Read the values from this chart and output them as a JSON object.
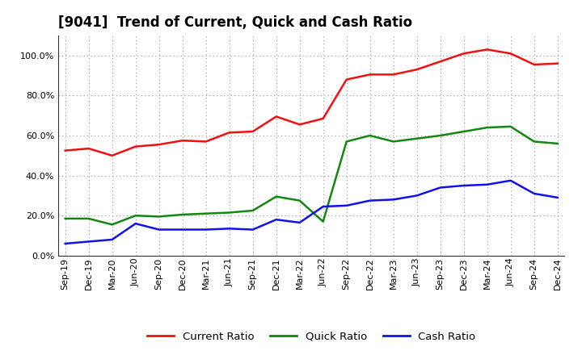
{
  "title": "[9041]  Trend of Current, Quick and Cash Ratio",
  "labels": [
    "Sep-19",
    "Dec-19",
    "Mar-20",
    "Jun-20",
    "Sep-20",
    "Dec-20",
    "Mar-21",
    "Jun-21",
    "Sep-21",
    "Dec-21",
    "Mar-22",
    "Jun-22",
    "Sep-22",
    "Dec-22",
    "Mar-23",
    "Jun-23",
    "Sep-23",
    "Dec-23",
    "Mar-24",
    "Jun-24",
    "Sep-24",
    "Dec-24"
  ],
  "current_ratio": [
    52.5,
    53.5,
    50.0,
    54.5,
    55.5,
    57.5,
    57.0,
    61.5,
    62.0,
    69.5,
    65.5,
    68.5,
    88.0,
    90.5,
    90.5,
    93.0,
    97.0,
    101.0,
    103.0,
    101.0,
    95.5,
    96.0
  ],
  "quick_ratio": [
    18.5,
    18.5,
    15.5,
    20.0,
    19.5,
    20.5,
    21.0,
    21.5,
    22.5,
    29.5,
    27.5,
    17.0,
    57.0,
    60.0,
    57.0,
    58.5,
    60.0,
    62.0,
    64.0,
    64.5,
    57.0,
    56.0
  ],
  "cash_ratio": [
    6.0,
    7.0,
    8.0,
    16.0,
    13.0,
    13.0,
    13.0,
    13.5,
    13.0,
    18.0,
    16.5,
    24.5,
    25.0,
    27.5,
    28.0,
    30.0,
    34.0,
    35.0,
    35.5,
    37.5,
    31.0,
    29.0
  ],
  "current_color": "#EE1111",
  "quick_color": "#118811",
  "cash_color": "#1111EE",
  "ylim": [
    0,
    110
  ],
  "yticks": [
    0,
    20,
    40,
    60,
    80,
    100
  ],
  "background_color": "#FFFFFF",
  "plot_bg_color": "#FFFFFF",
  "grid_color": "#999999",
  "title_fontsize": 12,
  "legend_fontsize": 9.5,
  "tick_fontsize": 8,
  "linewidth": 1.8
}
